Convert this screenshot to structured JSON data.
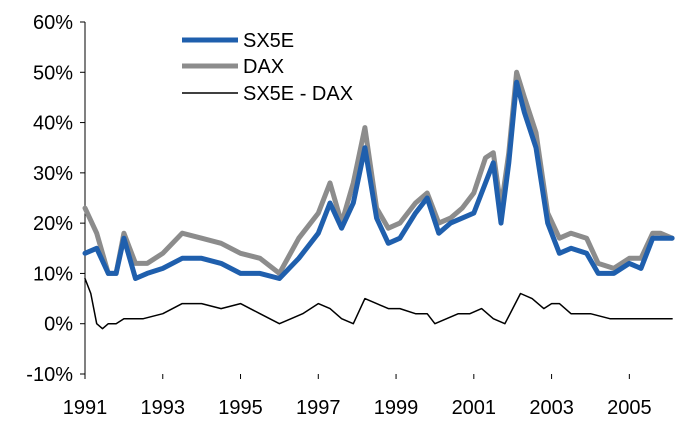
{
  "chart_data": {
    "type": "line",
    "title": "",
    "xlabel": "",
    "ylabel": "",
    "x_ticks": [
      "1991",
      "1993",
      "1995",
      "1997",
      "1999",
      "2001",
      "2003",
      "2005"
    ],
    "y_ticks": [
      "-10%",
      "0%",
      "10%",
      "20%",
      "30%",
      "40%",
      "50%",
      "60%"
    ],
    "xlim": [
      1991.0,
      2006.2
    ],
    "ylim": [
      -10,
      60
    ],
    "grid": false,
    "legend_position": "top-center",
    "series": [
      {
        "name": "SX5E",
        "color": "#1f5fad",
        "x": [
          1991.0,
          1991.3,
          1991.6,
          1991.8,
          1992.0,
          1992.3,
          1992.6,
          1993.0,
          1993.5,
          1994.0,
          1994.5,
          1995.0,
          1995.5,
          1996.0,
          1996.5,
          1997.0,
          1997.3,
          1997.6,
          1997.9,
          1998.2,
          1998.5,
          1998.8,
          1999.1,
          1999.5,
          1999.8,
          2000.1,
          2000.4,
          2000.7,
          2001.0,
          2001.3,
          2001.5,
          2001.7,
          2001.9,
          2002.1,
          2002.3,
          2002.6,
          2002.9,
          2003.2,
          2003.5,
          2003.9,
          2004.2,
          2004.6,
          2005.0,
          2005.3,
          2005.6,
          2005.8,
          2006.1
        ],
        "y": [
          14,
          15,
          10,
          10,
          17,
          9,
          10,
          11,
          13,
          13,
          12,
          10,
          10,
          9,
          13,
          18,
          24,
          19,
          24,
          35,
          21,
          16,
          17,
          22,
          25,
          18,
          20,
          21,
          22,
          28,
          32,
          20,
          32,
          48,
          42,
          35,
          20,
          14,
          15,
          14,
          10,
          10,
          12,
          11,
          17,
          17,
          17
        ]
      },
      {
        "name": "DAX",
        "color": "#8c8c8c",
        "x": [
          1991.0,
          1991.3,
          1991.6,
          1991.8,
          1992.0,
          1992.3,
          1992.6,
          1993.0,
          1993.5,
          1994.0,
          1994.5,
          1995.0,
          1995.5,
          1996.0,
          1996.5,
          1997.0,
          1997.3,
          1997.6,
          1997.9,
          1998.2,
          1998.5,
          1998.8,
          1999.1,
          1999.5,
          1999.8,
          2000.1,
          2000.4,
          2000.7,
          2001.0,
          2001.3,
          2001.5,
          2001.7,
          2001.9,
          2002.1,
          2002.3,
          2002.6,
          2002.9,
          2003.2,
          2003.5,
          2003.9,
          2004.2,
          2004.6,
          2005.0,
          2005.3,
          2005.6,
          2005.8,
          2006.1
        ],
        "y": [
          23,
          18,
          10,
          10,
          18,
          12,
          12,
          14,
          18,
          17,
          16,
          14,
          13,
          10,
          17,
          22,
          28,
          20,
          28,
          39,
          23,
          19,
          20,
          24,
          26,
          20,
          21,
          23,
          26,
          33,
          34,
          23,
          34,
          50,
          45,
          38,
          22,
          17,
          18,
          17,
          12,
          11,
          13,
          13,
          18,
          18,
          17
        ]
      },
      {
        "name": "SX5E - DAX",
        "color": "#000000",
        "x": [
          1991.0,
          1991.15,
          1991.3,
          1991.45,
          1991.6,
          1991.8,
          1992.0,
          1992.5,
          1993.0,
          1993.5,
          1994.0,
          1994.5,
          1995.0,
          1995.5,
          1996.0,
          1996.3,
          1996.6,
          1997.0,
          1997.3,
          1997.6,
          1997.9,
          1998.2,
          1998.5,
          1998.8,
          1999.1,
          1999.5,
          1999.8,
          2000.0,
          2000.3,
          2000.6,
          2000.9,
          2001.2,
          2001.5,
          2001.8,
          2002.0,
          2002.2,
          2002.5,
          2002.8,
          2003.0,
          2003.2,
          2003.5,
          2003.8,
          2004.0,
          2004.5,
          2005.0,
          2005.5,
          2005.8,
          2006.1
        ],
        "y": [
          9,
          6,
          0,
          -1,
          0,
          0,
          1,
          1,
          2,
          4,
          4,
          3,
          4,
          2,
          0,
          1,
          2,
          4,
          3,
          1,
          0,
          5,
          4,
          3,
          3,
          2,
          2,
          0,
          1,
          2,
          2,
          3,
          1,
          0,
          3,
          6,
          5,
          3,
          4,
          4,
          2,
          2,
          2,
          1,
          1,
          1,
          1,
          1
        ]
      }
    ]
  }
}
